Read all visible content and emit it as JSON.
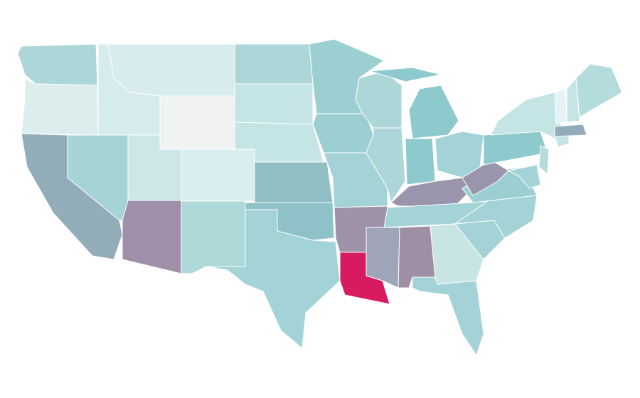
{
  "map": {
    "regions": [
      {
        "color": "#acd6d8"
      },
      {
        "color": "#dcedee"
      },
      {
        "color": "#92acba"
      },
      {
        "color": "#a6d4d6"
      },
      {
        "color": "#d6ebec"
      },
      {
        "color": "#d8ecee"
      },
      {
        "color": "#f0f2f3"
      },
      {
        "color": "#cde7e8"
      },
      {
        "color": "#daeeef"
      },
      {
        "color": "#a08fa8"
      },
      {
        "color": "#acd8d8"
      },
      {
        "color": "#acd6d8"
      },
      {
        "color": "#c4e4e5"
      },
      {
        "color": "#c4e4e5"
      },
      {
        "color": "#8fbec5"
      },
      {
        "color": "#8fc2c8"
      },
      {
        "color": "#a3d3d6"
      },
      {
        "color": "#9ccfd2"
      },
      {
        "color": "#9ccfd2"
      },
      {
        "color": "#a3d3d6"
      },
      {
        "color": "#9d92a8"
      },
      {
        "color": "#d81b60"
      },
      {
        "color": "#acd6d8"
      },
      {
        "color": "#acd6d8"
      },
      {
        "color": "#8ec9cd"
      },
      {
        "color": "#8ec9cd"
      },
      {
        "color": "#8ec9cd"
      },
      {
        "color": "#a3d3d6"
      },
      {
        "color": "#9a95ac"
      },
      {
        "color": "#a3d3d6"
      },
      {
        "color": "#9ea5b8"
      },
      {
        "color": "#a08ea5"
      },
      {
        "color": "#c8e4e5"
      },
      {
        "color": "#a3d3d6"
      },
      {
        "color": "#a3d3d6"
      },
      {
        "color": "#a3d3d6"
      },
      {
        "color": "#9ccfd2"
      },
      {
        "color": "#9a95ac"
      },
      {
        "color": "#8ec9cd"
      },
      {
        "color": "#c4e4e5"
      },
      {
        "color": "#b5dcdc"
      },
      {
        "color": "#a3d3d6"
      },
      {
        "color": "#c4e4e5"
      },
      {
        "color": "#92acba"
      },
      {
        "color": "#e6f3f4"
      },
      {
        "color": "#c4e4e5"
      },
      {
        "color": "#b5dcdc"
      }
    ]
  }
}
